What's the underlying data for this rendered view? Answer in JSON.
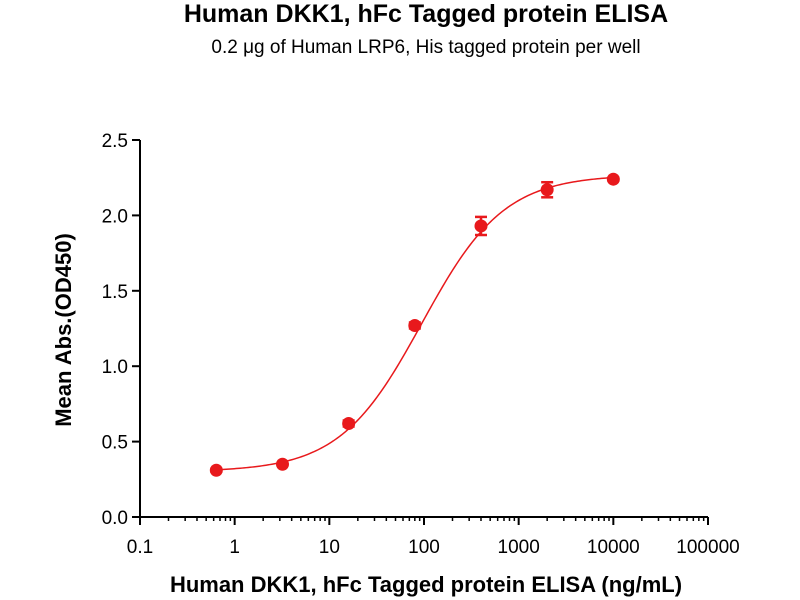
{
  "chart_data": {
    "type": "scatter",
    "title": "Human DKK1, hFc Tagged protein  ELISA",
    "subtitle": "0.2 μg of Human LRP6, His tagged protein per well",
    "xlabel": "Human DKK1, hFc Tagged protein  ELISA (ng/mL)",
    "ylabel": "Mean Abs.(OD450)",
    "x_scale": "log",
    "xlim": [
      0.1,
      100000
    ],
    "ylim": [
      0,
      2.5
    ],
    "x_ticks": [
      0.1,
      1,
      10,
      100,
      1000,
      10000,
      100000
    ],
    "x_tick_labels": [
      "0.1",
      "1",
      "10",
      "100",
      "1000",
      "10000",
      "100000"
    ],
    "y_ticks": [
      0,
      0.5,
      1.0,
      1.5,
      2.0,
      2.5
    ],
    "y_tick_labels": [
      "0.0",
      "0.5",
      "1.0",
      "1.5",
      "2.0",
      "2.5"
    ],
    "grid": false,
    "legend": "none",
    "series": [
      {
        "color": "#e8191c",
        "x": [
          0.64,
          3.2,
          16,
          80,
          400,
          2000,
          10000
        ],
        "y": [
          0.31,
          0.35,
          0.62,
          1.27,
          1.93,
          2.17,
          2.24
        ],
        "y_err": [
          0.01,
          0.01,
          0.02,
          0.02,
          0.06,
          0.05,
          0.01
        ],
        "fit": {
          "model": "4PL",
          "bottom": 0.3,
          "top": 2.27,
          "ec50": 95,
          "hill": 1.0
        }
      }
    ]
  }
}
